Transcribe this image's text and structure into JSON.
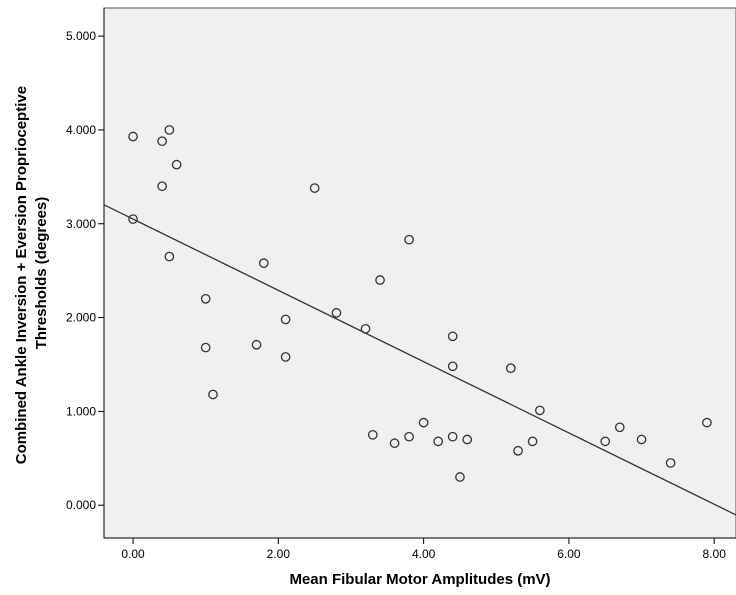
{
  "chart_data": {
    "type": "scatter",
    "title": "",
    "xlabel": "Mean Fibular Motor Amplitudes (mV)",
    "ylabel_lines": [
      "Combined Ankle Inversion + Eversion Proprioceptive",
      "Thresholds (degrees)"
    ],
    "xlim": [
      -0.4,
      8.3
    ],
    "ylim": [
      -0.35,
      5.3
    ],
    "x_ticks": [
      0,
      2,
      4,
      6,
      8
    ],
    "x_tick_labels": [
      "0.00",
      "2.00",
      "4.00",
      "6.00",
      "8.00"
    ],
    "y_ticks": [
      0,
      1,
      2,
      3,
      4,
      5
    ],
    "y_tick_labels": [
      "0.000",
      "1.000",
      "2.000",
      "3.000",
      "4.000",
      "5.000"
    ],
    "grid": false,
    "legend": "none",
    "points": [
      {
        "x": 0.0,
        "y": 3.93
      },
      {
        "x": 0.0,
        "y": 3.05
      },
      {
        "x": 0.4,
        "y": 3.88
      },
      {
        "x": 0.5,
        "y": 4.0
      },
      {
        "x": 0.4,
        "y": 3.4
      },
      {
        "x": 0.6,
        "y": 3.63
      },
      {
        "x": 0.5,
        "y": 2.65
      },
      {
        "x": 1.0,
        "y": 2.2
      },
      {
        "x": 1.0,
        "y": 1.68
      },
      {
        "x": 1.1,
        "y": 1.18
      },
      {
        "x": 1.7,
        "y": 1.71
      },
      {
        "x": 1.8,
        "y": 2.58
      },
      {
        "x": 2.1,
        "y": 1.98
      },
      {
        "x": 2.1,
        "y": 1.58
      },
      {
        "x": 2.5,
        "y": 3.38
      },
      {
        "x": 2.8,
        "y": 2.05
      },
      {
        "x": 3.2,
        "y": 1.88
      },
      {
        "x": 3.3,
        "y": 0.75
      },
      {
        "x": 3.4,
        "y": 2.4
      },
      {
        "x": 3.6,
        "y": 0.66
      },
      {
        "x": 3.8,
        "y": 0.73
      },
      {
        "x": 3.8,
        "y": 2.83
      },
      {
        "x": 4.0,
        "y": 0.88
      },
      {
        "x": 4.2,
        "y": 0.68
      },
      {
        "x": 4.4,
        "y": 1.8
      },
      {
        "x": 4.4,
        "y": 1.48
      },
      {
        "x": 4.4,
        "y": 0.73
      },
      {
        "x": 4.5,
        "y": 0.3
      },
      {
        "x": 4.6,
        "y": 0.7
      },
      {
        "x": 5.2,
        "y": 1.46
      },
      {
        "x": 5.3,
        "y": 0.58
      },
      {
        "x": 5.5,
        "y": 0.68
      },
      {
        "x": 5.6,
        "y": 1.01
      },
      {
        "x": 6.5,
        "y": 0.68
      },
      {
        "x": 6.7,
        "y": 0.83
      },
      {
        "x": 7.0,
        "y": 0.7
      },
      {
        "x": 7.4,
        "y": 0.45
      },
      {
        "x": 7.9,
        "y": 0.88
      }
    ],
    "fit_line": {
      "intercept": 3.05,
      "slope": -0.38
    },
    "colors": {
      "plot_background": "#f0f0f0",
      "marker_stroke": "#333333",
      "fit_line": "#333333",
      "axis": "#000000"
    }
  }
}
